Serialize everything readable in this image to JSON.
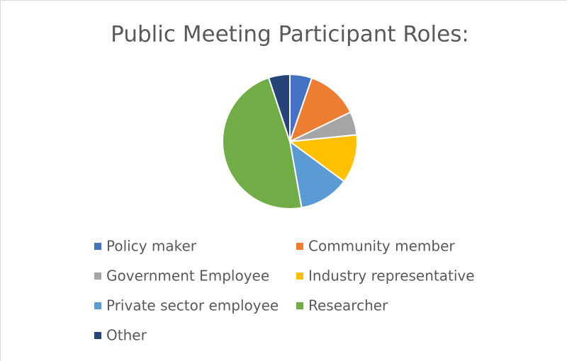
{
  "chart_data": {
    "type": "pie",
    "title": "Public Meeting Participant Roles:",
    "categories": [
      "Policy maker",
      "Community member",
      "Government Employee",
      "Industry representative",
      "Private sector employee",
      "Researcher",
      "Other"
    ],
    "values": [
      5.3,
      12.5,
      5.6,
      11.7,
      12.1,
      47.7,
      5.1
    ],
    "colors": [
      "#4472c4",
      "#ed7d31",
      "#a5a5a5",
      "#ffc000",
      "#5b9bd5",
      "#70ad47",
      "#264478"
    ]
  }
}
